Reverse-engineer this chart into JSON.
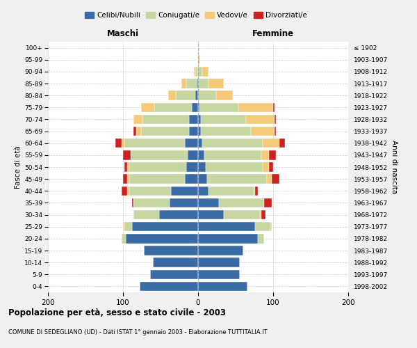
{
  "age_groups": [
    "0-4",
    "5-9",
    "10-14",
    "15-19",
    "20-24",
    "25-29",
    "30-34",
    "35-39",
    "40-44",
    "45-49",
    "50-54",
    "55-59",
    "60-64",
    "65-69",
    "70-74",
    "75-79",
    "80-84",
    "85-89",
    "90-94",
    "95-99",
    "100+"
  ],
  "birth_years": [
    "1998-2002",
    "1993-1997",
    "1988-1992",
    "1983-1987",
    "1978-1982",
    "1973-1977",
    "1968-1972",
    "1963-1967",
    "1958-1962",
    "1953-1957",
    "1948-1952",
    "1943-1947",
    "1938-1942",
    "1933-1937",
    "1928-1932",
    "1923-1927",
    "1918-1922",
    "1913-1917",
    "1908-1912",
    "1903-1907",
    "≤ 1902"
  ],
  "males": {
    "celibi": [
      78,
      64,
      60,
      72,
      96,
      88,
      52,
      38,
      36,
      18,
      16,
      14,
      18,
      12,
      12,
      8,
      4,
      2,
      0,
      0,
      0
    ],
    "coniugati": [
      0,
      0,
      0,
      0,
      6,
      10,
      34,
      48,
      56,
      74,
      76,
      76,
      80,
      64,
      62,
      50,
      26,
      14,
      4,
      1,
      0
    ],
    "vedovi": [
      0,
      0,
      0,
      0,
      0,
      2,
      0,
      0,
      2,
      2,
      2,
      0,
      4,
      6,
      12,
      18,
      10,
      6,
      2,
      0,
      0
    ],
    "divorziati": [
      0,
      0,
      0,
      0,
      0,
      0,
      0,
      2,
      8,
      6,
      4,
      10,
      8,
      4,
      0,
      0,
      0,
      0,
      0,
      0,
      0
    ]
  },
  "females": {
    "nubili": [
      66,
      56,
      56,
      60,
      80,
      76,
      34,
      28,
      14,
      12,
      10,
      8,
      6,
      4,
      4,
      2,
      0,
      0,
      0,
      0,
      0
    ],
    "coniugate": [
      0,
      0,
      0,
      0,
      8,
      20,
      48,
      60,
      60,
      80,
      76,
      76,
      80,
      66,
      60,
      52,
      24,
      14,
      6,
      1,
      0
    ],
    "vedove": [
      0,
      0,
      0,
      0,
      0,
      2,
      2,
      0,
      2,
      6,
      8,
      10,
      22,
      32,
      38,
      46,
      22,
      20,
      8,
      2,
      0
    ],
    "divorziate": [
      0,
      0,
      0,
      0,
      0,
      0,
      6,
      10,
      4,
      10,
      6,
      10,
      8,
      2,
      2,
      2,
      0,
      0,
      0,
      0,
      0
    ]
  },
  "colors": {
    "celibi_nubili": "#3b6ba5",
    "coniugati": "#c5d6a0",
    "vedovi": "#f5c97a",
    "divorziati": "#cc2222"
  },
  "xlim": 200,
  "title": "Popolazione per età, sesso e stato civile - 2003",
  "subtitle": "COMUNE DI SEDEGLIANO (UD) - Dati ISTAT 1° gennaio 2003 - Elaborazione TUTTITALIA.IT",
  "ylabel": "Fasce di età",
  "right_label": "Anni di nascita",
  "left_header": "Maschi",
  "right_header": "Femmine",
  "bg_color": "#f0f0f0",
  "plot_bg": "#ffffff"
}
